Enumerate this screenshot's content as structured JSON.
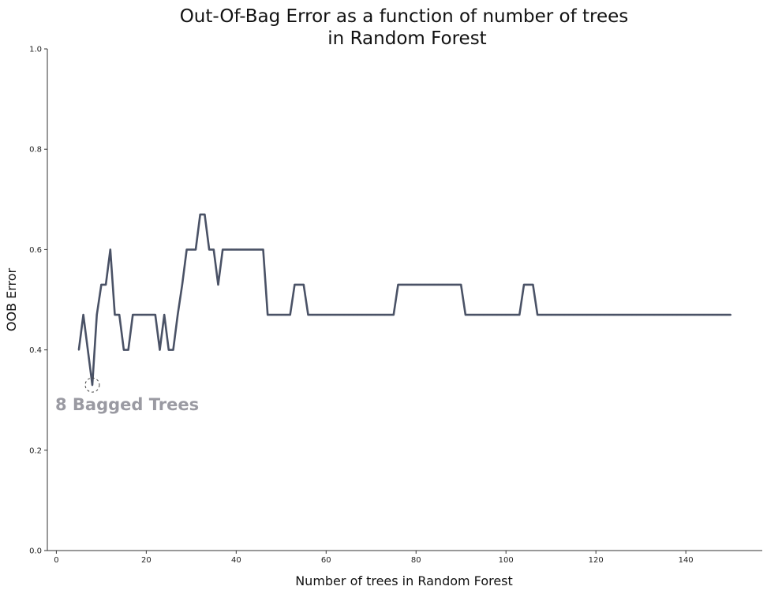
{
  "chart_data": {
    "type": "line",
    "title": "Out-Of-Bag Error as a function of number of trees",
    "title_line2": "in Random Forest",
    "xlabel": "Number of trees in Random Forest",
    "ylabel": "OOB Error",
    "xlim": [
      -2,
      157
    ],
    "ylim": [
      0.0,
      1.0
    ],
    "xticks": [
      0,
      20,
      40,
      60,
      80,
      100,
      120,
      140
    ],
    "xtick_labels": [
      "0",
      "20",
      "40",
      "60",
      "80",
      "100",
      "120",
      "140"
    ],
    "yticks": [
      0.0,
      0.2,
      0.4,
      0.6,
      0.8,
      1.0
    ],
    "ytick_labels": [
      "0.0",
      "0.2",
      "0.4",
      "0.6",
      "0.8",
      "1.0"
    ],
    "grid": false,
    "line_color": "#4a5266",
    "series": [
      {
        "x": [
          5,
          6,
          7,
          8,
          9,
          10,
          11,
          12,
          13,
          14,
          15,
          16,
          17,
          18,
          19,
          20,
          21,
          22,
          23,
          24,
          25,
          26,
          27,
          28,
          29,
          30,
          31,
          32,
          33,
          34,
          35,
          36,
          37,
          38,
          39,
          40,
          41,
          42,
          43,
          44,
          45,
          46,
          47,
          48,
          49,
          50,
          51,
          52,
          53,
          54,
          55,
          56,
          57,
          58,
          59,
          60,
          61,
          62,
          63,
          64,
          65,
          66,
          67,
          68,
          69,
          70,
          71,
          72,
          73,
          74,
          75,
          76,
          77,
          78,
          79,
          80,
          81,
          82,
          83,
          84,
          85,
          86,
          87,
          88,
          89,
          90,
          91,
          92,
          93,
          94,
          95,
          96,
          97,
          98,
          99,
          100,
          101,
          102,
          103,
          104,
          105,
          106,
          107,
          108,
          109,
          110,
          111,
          112,
          113,
          114,
          115,
          116,
          117,
          118,
          119,
          120,
          121,
          122,
          123,
          124,
          125,
          126,
          127,
          128,
          129,
          130,
          131,
          132,
          133,
          134,
          135,
          136,
          137,
          138,
          139,
          140,
          141,
          142,
          143,
          144,
          145,
          146,
          147,
          148,
          149,
          150
        ],
        "y": [
          0.4,
          0.47,
          0.4,
          0.33,
          0.47,
          0.53,
          0.53,
          0.6,
          0.47,
          0.47,
          0.4,
          0.4,
          0.47,
          0.47,
          0.47,
          0.47,
          0.47,
          0.47,
          0.4,
          0.47,
          0.4,
          0.4,
          0.47,
          0.53,
          0.6,
          0.6,
          0.6,
          0.67,
          0.67,
          0.6,
          0.6,
          0.53,
          0.6,
          0.6,
          0.6,
          0.6,
          0.6,
          0.6,
          0.6,
          0.6,
          0.6,
          0.6,
          0.47,
          0.47,
          0.47,
          0.47,
          0.47,
          0.47,
          0.53,
          0.53,
          0.53,
          0.47,
          0.47,
          0.47,
          0.47,
          0.47,
          0.47,
          0.47,
          0.47,
          0.47,
          0.47,
          0.47,
          0.47,
          0.47,
          0.47,
          0.47,
          0.47,
          0.47,
          0.47,
          0.47,
          0.47,
          0.53,
          0.53,
          0.53,
          0.53,
          0.53,
          0.53,
          0.53,
          0.53,
          0.53,
          0.53,
          0.53,
          0.53,
          0.53,
          0.53,
          0.53,
          0.47,
          0.47,
          0.47,
          0.47,
          0.47,
          0.47,
          0.47,
          0.47,
          0.47,
          0.47,
          0.47,
          0.47,
          0.47,
          0.53,
          0.53,
          0.53,
          0.47,
          0.47,
          0.47,
          0.47,
          0.47,
          0.47,
          0.47,
          0.47,
          0.47,
          0.47,
          0.47,
          0.47,
          0.47,
          0.47,
          0.47,
          0.47,
          0.47,
          0.47,
          0.47,
          0.47,
          0.47,
          0.47,
          0.47,
          0.47,
          0.47,
          0.47,
          0.47,
          0.47,
          0.47,
          0.47,
          0.47,
          0.47,
          0.47,
          0.47,
          0.47,
          0.47,
          0.47,
          0.47,
          0.47,
          0.47,
          0.47,
          0.47,
          0.47,
          0.47
        ]
      }
    ],
    "annotation": {
      "text": "8 Bagged Trees",
      "x": 8,
      "y": 0.33
    }
  }
}
